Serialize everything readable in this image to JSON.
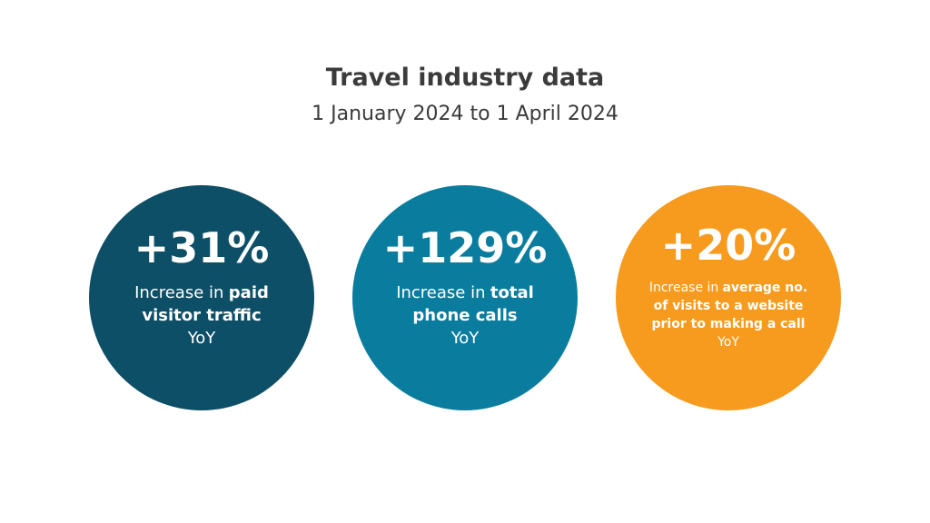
{
  "header": {
    "title": "Travel industry data",
    "subtitle": "1 January 2024 to 1 April 2024"
  },
  "stats": [
    {
      "value": "+31%",
      "color": "#0d4f66",
      "lines": [
        [
          {
            "text": "Increase in"
          },
          {
            "text": "paid",
            "bold": true
          }
        ],
        [
          {
            "text": "visitor traffic",
            "bold": true
          }
        ],
        [
          {
            "text": "YoY"
          }
        ]
      ]
    },
    {
      "value": "+129%",
      "color": "#0a7d9e",
      "lines": [
        [
          {
            "text": "Increase in"
          },
          {
            "text": "total",
            "bold": true
          }
        ],
        [
          {
            "text": "phone calls",
            "bold": true
          }
        ],
        [
          {
            "text": "YoY"
          }
        ]
      ]
    },
    {
      "value": "+20%",
      "color": "#f79b1e",
      "lines": [
        [
          {
            "text": "Increase in"
          },
          {
            "text": "average no.",
            "bold": true
          }
        ],
        [
          {
            "text": "of visits to a website",
            "bold": true
          }
        ],
        [
          {
            "text": "prior to making a call",
            "bold": true
          }
        ],
        [
          {
            "text": "YoY"
          }
        ]
      ]
    }
  ]
}
